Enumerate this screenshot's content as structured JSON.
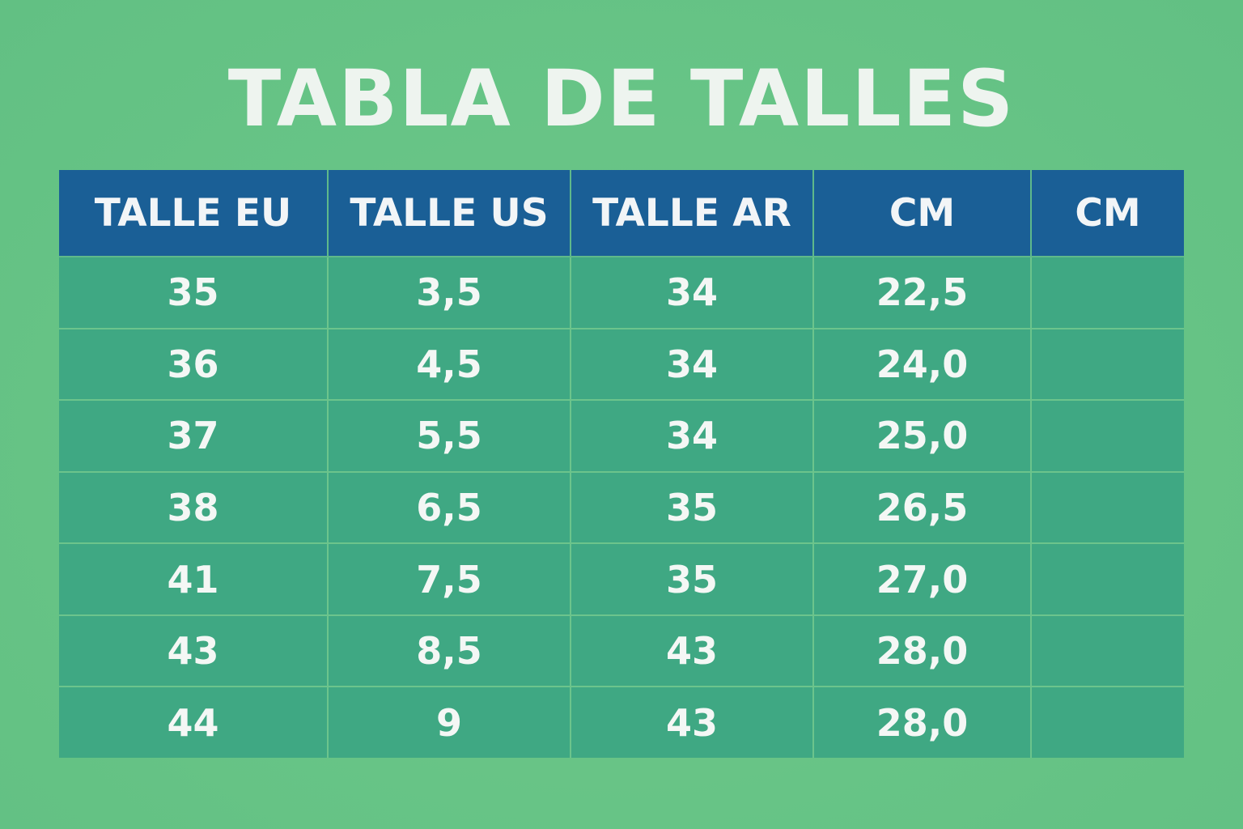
{
  "title": "TABLA DE TALLES",
  "colors": {
    "background": "#67c486",
    "header": "#1a5f96",
    "cell": "#3fa883",
    "text": "#f4f7f5"
  },
  "table": {
    "headers": [
      "TALLE EU",
      "TALLE US",
      "TALLE AR",
      "CM",
      "CM"
    ],
    "rows": [
      [
        "35",
        "3,5",
        "34",
        "22,5",
        ""
      ],
      [
        "36",
        "4,5",
        "34",
        "24,0",
        ""
      ],
      [
        "37",
        "5,5",
        "34",
        "25,0",
        ""
      ],
      [
        "38",
        "6,5",
        "35",
        "26,5",
        ""
      ],
      [
        "41",
        "7,5",
        "35",
        "27,0",
        ""
      ],
      [
        "43",
        "8,5",
        "43",
        "28,0",
        ""
      ],
      [
        "44",
        "9",
        "43",
        "28,0",
        ""
      ]
    ]
  }
}
